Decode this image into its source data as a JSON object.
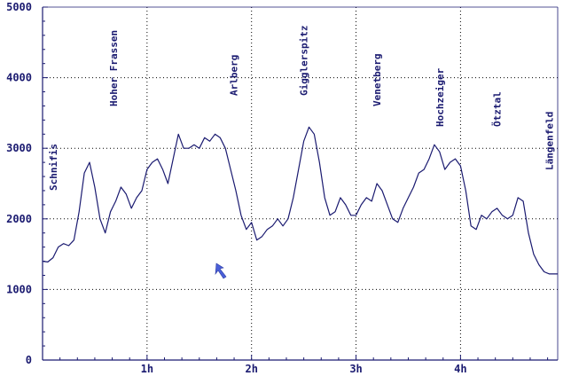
{
  "chart_data": {
    "type": "line",
    "title": "",
    "xlabel": "",
    "ylabel": "",
    "xlim": [
      0,
      4.93
    ],
    "ylim": [
      0,
      5000
    ],
    "grid": true,
    "y_ticks": [
      {
        "value": 0,
        "label": "0"
      },
      {
        "value": 1000,
        "label": "1000"
      },
      {
        "value": 2000,
        "label": "2000"
      },
      {
        "value": 3000,
        "label": "3000"
      },
      {
        "value": 4000,
        "label": "4000"
      },
      {
        "value": 5000,
        "label": "5000"
      }
    ],
    "x_ticks": [
      {
        "value": 1,
        "label": "1h"
      },
      {
        "value": 2,
        "label": "2h"
      },
      {
        "value": 3,
        "label": "3h"
      },
      {
        "value": 4,
        "label": "4h"
      }
    ],
    "annotations": [
      {
        "x": 0.1,
        "label": "Schnifis"
      },
      {
        "x": 0.68,
        "label": "Hoher Frassen"
      },
      {
        "x": 1.83,
        "label": "Arlberg"
      },
      {
        "x": 2.5,
        "label": "Gigglerspitz"
      },
      {
        "x": 3.2,
        "label": "Venetberg"
      },
      {
        "x": 3.8,
        "label": "Hochzeiger"
      },
      {
        "x": 4.35,
        "label": "Ötztal"
      },
      {
        "x": 4.85,
        "label": "Längenfeld"
      }
    ],
    "series": [
      {
        "color": "#1a1a70",
        "x": [
          0.0,
          0.05,
          0.1,
          0.15,
          0.2,
          0.25,
          0.3,
          0.35,
          0.4,
          0.45,
          0.5,
          0.55,
          0.6,
          0.65,
          0.7,
          0.75,
          0.8,
          0.85,
          0.9,
          0.95,
          1.0,
          1.05,
          1.1,
          1.15,
          1.2,
          1.25,
          1.3,
          1.35,
          1.4,
          1.45,
          1.5,
          1.55,
          1.6,
          1.65,
          1.7,
          1.75,
          1.8,
          1.85,
          1.9,
          1.95,
          2.0,
          2.05,
          2.1,
          2.15,
          2.2,
          2.25,
          2.3,
          2.35,
          2.4,
          2.45,
          2.5,
          2.55,
          2.6,
          2.65,
          2.7,
          2.75,
          2.8,
          2.85,
          2.9,
          2.95,
          3.0,
          3.05,
          3.1,
          3.15,
          3.2,
          3.25,
          3.3,
          3.35,
          3.4,
          3.45,
          3.5,
          3.55,
          3.6,
          3.65,
          3.7,
          3.75,
          3.8,
          3.85,
          3.9,
          3.95,
          4.0,
          4.05,
          4.1,
          4.15,
          4.2,
          4.25,
          4.3,
          4.35,
          4.4,
          4.45,
          4.5,
          4.55,
          4.6,
          4.65,
          4.7,
          4.75,
          4.8,
          4.85,
          4.9,
          4.93
        ],
        "values": [
          1400,
          1390,
          1450,
          1600,
          1650,
          1620,
          1700,
          2100,
          2650,
          2800,
          2450,
          2000,
          1800,
          2100,
          2250,
          2450,
          2350,
          2150,
          2300,
          2400,
          2700,
          2800,
          2850,
          2700,
          2500,
          2850,
          3200,
          3000,
          3000,
          3050,
          3000,
          3150,
          3100,
          3200,
          3150,
          3000,
          2700,
          2400,
          2050,
          1850,
          1950,
          1700,
          1750,
          1850,
          1900,
          2000,
          1900,
          2000,
          2300,
          2700,
          3100,
          3300,
          3200,
          2800,
          2300,
          2050,
          2100,
          2300,
          2200,
          2050,
          2050,
          2200,
          2300,
          2250,
          2500,
          2400,
          2200,
          2000,
          1950,
          2150,
          2300,
          2450,
          2650,
          2700,
          2850,
          3050,
          2950,
          2700,
          2800,
          2850,
          2750,
          2400,
          1900,
          1850,
          2050,
          2000,
          2100,
          2150,
          2050,
          2000,
          2050,
          2300,
          2250,
          1800,
          1500,
          1350,
          1250,
          1220,
          1220,
          1220
        ]
      }
    ]
  }
}
